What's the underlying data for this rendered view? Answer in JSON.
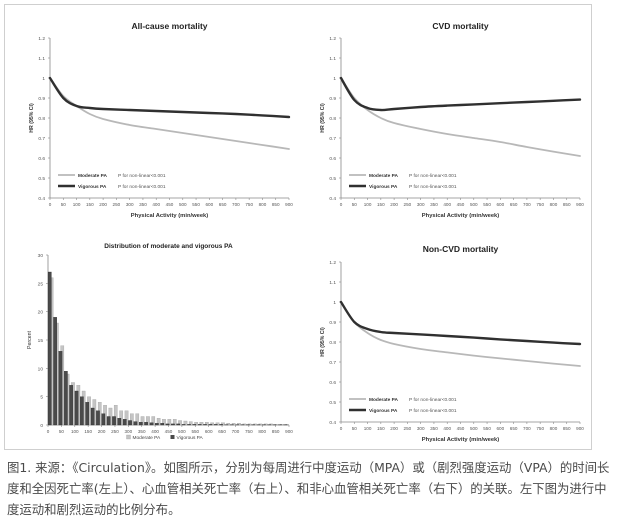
{
  "figure": {
    "caption": "图1. 来源：《Circulation》。如图所示，分别为每周进行中度运动（MPA）或（剧烈强度运动（VPA）的时间长度和全因死亡率(左上）、心血管相关死亡率（右上）、和非心血管相关死亡率（右下）的关联。左下图为进行中度运动和剧烈运动的比例分布。"
  },
  "colors": {
    "moderate": "#b8b8b8",
    "vigorous": "#303030",
    "bar_moderate": "#c4c4c4",
    "bar_vigorous": "#4a4a4a",
    "axis": "#888888",
    "frame": "#cfcfcf"
  },
  "chart_data": [
    {
      "id": "allcause",
      "type": "line",
      "title": "All-cause mortality",
      "xlabel": "Physical Activity (min/week)",
      "ylabel": "HR (95% CI)",
      "xlim": [
        0,
        900
      ],
      "ylim": [
        0.4,
        1.2
      ],
      "xticks": [
        "0",
        "50",
        "100",
        "150",
        "200",
        "250",
        "300",
        "350",
        "400",
        "450",
        "500",
        "550",
        "600",
        "650",
        "700",
        "750",
        "800",
        "850",
        "900"
      ],
      "yticks": [
        "0.4",
        "0.5",
        "0.6",
        "0.7",
        "0.8",
        "0.9",
        "1",
        "1.1",
        "1.2"
      ],
      "legend_position": "bottom-left",
      "legend": [
        {
          "name": "Moderate PA",
          "note": "P for non-linear<0.001"
        },
        {
          "name": "Vigorous PA",
          "note": "P for non-linear<0.001"
        }
      ],
      "series": [
        {
          "name": "Moderate PA",
          "x": [
            0,
            50,
            100,
            150,
            200,
            300,
            400,
            500,
            600,
            700,
            800,
            900
          ],
          "y": [
            1,
            0.91,
            0.86,
            0.82,
            0.795,
            0.765,
            0.745,
            0.725,
            0.705,
            0.685,
            0.665,
            0.645
          ]
        },
        {
          "name": "Vigorous PA",
          "x": [
            0,
            50,
            100,
            150,
            200,
            300,
            400,
            500,
            600,
            700,
            800,
            900
          ],
          "y": [
            1,
            0.9,
            0.86,
            0.85,
            0.845,
            0.84,
            0.835,
            0.83,
            0.825,
            0.82,
            0.813,
            0.805
          ]
        }
      ]
    },
    {
      "id": "cvd",
      "type": "line",
      "title": "CVD mortality",
      "xlabel": "Physical Activity (min/week)",
      "ylabel": "HR (95% CI)",
      "xlim": [
        0,
        900
      ],
      "ylim": [
        0.4,
        1.2
      ],
      "xticks": [
        "0",
        "50",
        "100",
        "150",
        "200",
        "250",
        "300",
        "350",
        "400",
        "450",
        "500",
        "550",
        "600",
        "650",
        "700",
        "750",
        "800",
        "850",
        "900"
      ],
      "yticks": [
        "0.4",
        "0.5",
        "0.6",
        "0.7",
        "0.8",
        "0.9",
        "1",
        "1.1",
        "1.2"
      ],
      "legend_position": "bottom-left",
      "legend": [
        {
          "name": "Moderate PA",
          "note": "P for non-linear<0.001"
        },
        {
          "name": "Vigorous PA",
          "note": "P for non-linear<0.001"
        }
      ],
      "series": [
        {
          "name": "Moderate PA",
          "x": [
            0,
            50,
            100,
            150,
            200,
            300,
            400,
            500,
            600,
            700,
            800,
            900
          ],
          "y": [
            1,
            0.9,
            0.84,
            0.8,
            0.775,
            0.745,
            0.72,
            0.7,
            0.68,
            0.655,
            0.632,
            0.61
          ]
        },
        {
          "name": "Vigorous PA",
          "x": [
            0,
            50,
            100,
            150,
            200,
            300,
            400,
            500,
            600,
            700,
            800,
            900
          ],
          "y": [
            1,
            0.89,
            0.85,
            0.84,
            0.845,
            0.855,
            0.862,
            0.868,
            0.874,
            0.88,
            0.886,
            0.892
          ]
        }
      ]
    },
    {
      "id": "distribution",
      "type": "bar",
      "title": "Distribution of moderate and vigorous PA",
      "xlabel": "",
      "ylabel": "Percent",
      "xlim": [
        0,
        900
      ],
      "ylim": [
        0,
        30
      ],
      "xticks": [
        "0",
        "50",
        "100",
        "150",
        "200",
        "250",
        "300",
        "350",
        "400",
        "450",
        "500",
        "550",
        "600",
        "650",
        "700",
        "750",
        "800",
        "850",
        "900"
      ],
      "yticks": [
        "0",
        "5",
        "10",
        "15",
        "20",
        "25",
        "30"
      ],
      "legend_position": "bottom-center",
      "bin_width": 20,
      "series": [
        {
          "name": "Moderate PA",
          "values": [
            26,
            18,
            14,
            9,
            7.5,
            7,
            6,
            5,
            4.5,
            4,
            3.5,
            3,
            3.5,
            2.5,
            2.5,
            2,
            2,
            1.5,
            1.5,
            1.5,
            1.2,
            1,
            1,
            1,
            0.8,
            0.7,
            0.6,
            0.5,
            0.5,
            0.5,
            0.4,
            0.4,
            0.4,
            0.3,
            0.3,
            0.3,
            0.2,
            0.2,
            0.2,
            0.2,
            0.2,
            0.2,
            0.1,
            0.1,
            0.1
          ]
        },
        {
          "name": "Vigorous PA",
          "values": [
            27,
            19,
            13,
            9.5,
            7,
            6,
            5,
            4,
            3,
            2.5,
            2,
            1.5,
            1.5,
            1.2,
            1,
            0.8,
            0.6,
            0.5,
            0.5,
            0.4,
            0.3,
            0.3,
            0.2,
            0.2,
            0.2,
            0.1,
            0.1,
            0.1,
            0.1,
            0.1,
            0.1,
            0.1,
            0.1,
            0.05,
            0.05,
            0.05,
            0.05,
            0.05,
            0.05,
            0.05,
            0.05,
            0.05,
            0.05,
            0.05,
            0.05
          ]
        }
      ]
    },
    {
      "id": "noncvd",
      "type": "line",
      "title": "Non-CVD mortality",
      "xlabel": "Physical Activity (min/week)",
      "ylabel": "HR (95% CI)",
      "xlim": [
        0,
        900
      ],
      "ylim": [
        0.4,
        1.2
      ],
      "xticks": [
        "0",
        "50",
        "100",
        "150",
        "200",
        "250",
        "300",
        "350",
        "400",
        "450",
        "500",
        "550",
        "600",
        "650",
        "700",
        "750",
        "800",
        "850",
        "900"
      ],
      "yticks": [
        "0.4",
        "0.5",
        "0.6",
        "0.7",
        "0.8",
        "0.9",
        "1",
        "1.1",
        "1.2"
      ],
      "legend_position": "bottom-left",
      "legend": [
        {
          "name": "Moderate PA",
          "note": "P for non-linear<0.001"
        },
        {
          "name": "Vigorous PA",
          "note": "P for non-linear<0.001"
        }
      ],
      "series": [
        {
          "name": "Moderate PA",
          "x": [
            0,
            50,
            100,
            150,
            200,
            300,
            400,
            500,
            600,
            700,
            800,
            900
          ],
          "y": [
            1,
            0.9,
            0.845,
            0.81,
            0.79,
            0.765,
            0.748,
            0.732,
            0.718,
            0.705,
            0.692,
            0.68
          ]
        },
        {
          "name": "Vigorous PA",
          "x": [
            0,
            50,
            100,
            150,
            200,
            300,
            400,
            500,
            600,
            700,
            800,
            900
          ],
          "y": [
            1,
            0.9,
            0.865,
            0.85,
            0.845,
            0.838,
            0.83,
            0.822,
            0.813,
            0.805,
            0.797,
            0.79
          ]
        }
      ]
    }
  ]
}
